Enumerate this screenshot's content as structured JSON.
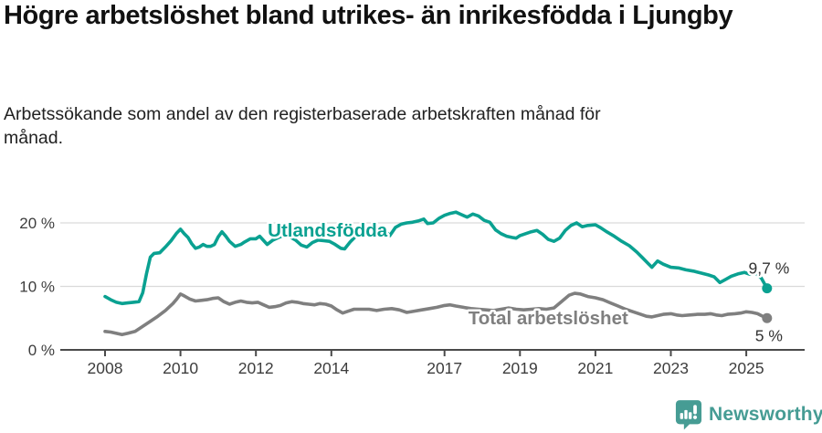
{
  "header": {
    "title": "Högre arbetslöshet bland utrikes- än inrikesfödda i Ljungby",
    "subtitle": "Arbetssökande som andel av den registerbaserade arbetskraften månad för månad."
  },
  "colors": {
    "teal_line": "#0aa191",
    "gray_line": "#7f7f7f",
    "grid": "#d9d9d9",
    "axis": "#4a4a4a",
    "tick_text": "#3d3d3d",
    "end_label_text": "#333333",
    "brand_teal": "#469c94"
  },
  "footer": {
    "brand": "Newsworthy",
    "logo_icon": "newsworthy-speech-bubble-chart-icon"
  },
  "chart_data": {
    "type": "line",
    "title": "Högre arbetslöshet bland utrikes- än inrikesfödda i Ljungby",
    "subtitle": "Arbetssökande som andel av den registerbaserade arbetskraften månad för månad.",
    "xlabel": "",
    "ylabel": "",
    "xlim": [
      2006.8,
      2026.5
    ],
    "ylim": [
      0,
      22.5
    ],
    "grid": "horizontal-only",
    "legend_position": "inline-labels",
    "x_ticks": [
      {
        "v": 2008,
        "label": "2008"
      },
      {
        "v": 2010,
        "label": "2010"
      },
      {
        "v": 2012,
        "label": "2012"
      },
      {
        "v": 2014,
        "label": "2014"
      },
      {
        "v": 2017,
        "label": "2017"
      },
      {
        "v": 2019,
        "label": "2019"
      },
      {
        "v": 2021,
        "label": "2021"
      },
      {
        "v": 2023,
        "label": "2023"
      },
      {
        "v": 2025,
        "label": "2025"
      }
    ],
    "y_ticks": [
      {
        "v": 0,
        "label": "0 %"
      },
      {
        "v": 10,
        "label": "10 %"
      },
      {
        "v": 20,
        "label": "20 %"
      }
    ],
    "series": [
      {
        "name": "Total arbetslöshet",
        "color": "#7f7f7f",
        "end_label": "5 %",
        "end_value": 5.0,
        "label_at": [
          2019.75,
          4.0
        ],
        "end_label_at": [
          2025.6,
          1.4
        ],
        "points": [
          [
            2008.0,
            2.9
          ],
          [
            2008.15,
            2.8
          ],
          [
            2008.3,
            2.6
          ],
          [
            2008.45,
            2.4
          ],
          [
            2008.6,
            2.6
          ],
          [
            2008.8,
            2.9
          ],
          [
            2009.0,
            3.7
          ],
          [
            2009.2,
            4.5
          ],
          [
            2009.4,
            5.3
          ],
          [
            2009.6,
            6.2
          ],
          [
            2009.8,
            7.3
          ],
          [
            2009.9,
            8.0
          ],
          [
            2010.0,
            8.8
          ],
          [
            2010.1,
            8.5
          ],
          [
            2010.25,
            8.0
          ],
          [
            2010.4,
            7.7
          ],
          [
            2010.55,
            7.8
          ],
          [
            2010.7,
            7.9
          ],
          [
            2010.85,
            8.1
          ],
          [
            2011.0,
            8.2
          ],
          [
            2011.15,
            7.6
          ],
          [
            2011.3,
            7.2
          ],
          [
            2011.45,
            7.5
          ],
          [
            2011.6,
            7.7
          ],
          [
            2011.75,
            7.5
          ],
          [
            2011.9,
            7.4
          ],
          [
            2012.05,
            7.5
          ],
          [
            2012.2,
            7.1
          ],
          [
            2012.35,
            6.7
          ],
          [
            2012.5,
            6.8
          ],
          [
            2012.65,
            7.0
          ],
          [
            2012.8,
            7.4
          ],
          [
            2012.95,
            7.6
          ],
          [
            2013.1,
            7.5
          ],
          [
            2013.25,
            7.3
          ],
          [
            2013.4,
            7.2
          ],
          [
            2013.55,
            7.1
          ],
          [
            2013.7,
            7.3
          ],
          [
            2013.85,
            7.2
          ],
          [
            2014.0,
            6.9
          ],
          [
            2014.15,
            6.3
          ],
          [
            2014.3,
            5.8
          ],
          [
            2014.45,
            6.1
          ],
          [
            2014.6,
            6.4
          ],
          [
            2014.8,
            6.4
          ],
          [
            2015.0,
            6.4
          ],
          [
            2015.2,
            6.2
          ],
          [
            2015.4,
            6.4
          ],
          [
            2015.6,
            6.5
          ],
          [
            2015.8,
            6.3
          ],
          [
            2016.0,
            5.9
          ],
          [
            2016.2,
            6.1
          ],
          [
            2016.4,
            6.3
          ],
          [
            2016.6,
            6.5
          ],
          [
            2016.8,
            6.7
          ],
          [
            2017.0,
            7.0
          ],
          [
            2017.15,
            7.1
          ],
          [
            2017.3,
            6.9
          ],
          [
            2017.5,
            6.7
          ],
          [
            2017.7,
            6.5
          ],
          [
            2017.9,
            6.4
          ],
          [
            2018.1,
            6.3
          ],
          [
            2018.3,
            6.2
          ],
          [
            2018.5,
            6.4
          ],
          [
            2018.7,
            6.6
          ],
          [
            2018.9,
            6.4
          ],
          [
            2019.1,
            6.3
          ],
          [
            2019.3,
            6.4
          ],
          [
            2019.5,
            6.5
          ],
          [
            2019.7,
            6.4
          ],
          [
            2019.9,
            6.6
          ],
          [
            2020.1,
            7.6
          ],
          [
            2020.3,
            8.6
          ],
          [
            2020.45,
            8.9
          ],
          [
            2020.6,
            8.8
          ],
          [
            2020.8,
            8.4
          ],
          [
            2021.0,
            8.2
          ],
          [
            2021.2,
            7.9
          ],
          [
            2021.4,
            7.4
          ],
          [
            2021.6,
            6.9
          ],
          [
            2021.8,
            6.4
          ],
          [
            2022.0,
            6.0
          ],
          [
            2022.2,
            5.6
          ],
          [
            2022.35,
            5.3
          ],
          [
            2022.5,
            5.2
          ],
          [
            2022.65,
            5.4
          ],
          [
            2022.8,
            5.6
          ],
          [
            2023.0,
            5.7
          ],
          [
            2023.15,
            5.5
          ],
          [
            2023.3,
            5.4
          ],
          [
            2023.5,
            5.5
          ],
          [
            2023.7,
            5.6
          ],
          [
            2023.9,
            5.6
          ],
          [
            2024.05,
            5.7
          ],
          [
            2024.2,
            5.5
          ],
          [
            2024.35,
            5.4
          ],
          [
            2024.5,
            5.6
          ],
          [
            2024.7,
            5.7
          ],
          [
            2024.85,
            5.8
          ],
          [
            2025.0,
            6.0
          ],
          [
            2025.15,
            5.9
          ],
          [
            2025.3,
            5.7
          ],
          [
            2025.4,
            5.4
          ],
          [
            2025.55,
            5.0
          ]
        ]
      },
      {
        "name": "Utlandsfödda",
        "color": "#0aa191",
        "end_label": "9,7 %",
        "end_value": 9.7,
        "label_at": [
          2013.9,
          17.85
        ],
        "end_label_at": [
          2025.6,
          12.0
        ],
        "points": [
          [
            2008.0,
            8.4
          ],
          [
            2008.15,
            7.9
          ],
          [
            2008.3,
            7.5
          ],
          [
            2008.45,
            7.3
          ],
          [
            2008.6,
            7.4
          ],
          [
            2008.75,
            7.5
          ],
          [
            2008.9,
            7.6
          ],
          [
            2009.0,
            9.0
          ],
          [
            2009.1,
            12.0
          ],
          [
            2009.2,
            14.6
          ],
          [
            2009.3,
            15.2
          ],
          [
            2009.45,
            15.3
          ],
          [
            2009.6,
            16.2
          ],
          [
            2009.75,
            17.2
          ],
          [
            2009.9,
            18.4
          ],
          [
            2010.0,
            19.0
          ],
          [
            2010.1,
            18.3
          ],
          [
            2010.2,
            17.7
          ],
          [
            2010.3,
            16.7
          ],
          [
            2010.4,
            16.0
          ],
          [
            2010.5,
            16.2
          ],
          [
            2010.6,
            16.6
          ],
          [
            2010.7,
            16.3
          ],
          [
            2010.8,
            16.3
          ],
          [
            2010.9,
            16.6
          ],
          [
            2011.0,
            17.8
          ],
          [
            2011.1,
            18.6
          ],
          [
            2011.2,
            17.9
          ],
          [
            2011.3,
            17.1
          ],
          [
            2011.45,
            16.3
          ],
          [
            2011.6,
            16.6
          ],
          [
            2011.7,
            17.0
          ],
          [
            2011.85,
            17.5
          ],
          [
            2012.0,
            17.5
          ],
          [
            2012.1,
            17.9
          ],
          [
            2012.3,
            16.6
          ],
          [
            2012.45,
            17.3
          ],
          [
            2012.6,
            17.7
          ],
          [
            2012.75,
            18.1
          ],
          [
            2012.9,
            17.8
          ],
          [
            2013.05,
            17.3
          ],
          [
            2013.2,
            16.5
          ],
          [
            2013.35,
            16.2
          ],
          [
            2013.5,
            16.9
          ],
          [
            2013.65,
            17.3
          ],
          [
            2013.8,
            17.2
          ],
          [
            2013.95,
            17.1
          ],
          [
            2014.1,
            16.6
          ],
          [
            2014.25,
            16.0
          ],
          [
            2014.35,
            15.9
          ],
          [
            2014.5,
            17.0
          ],
          [
            2014.65,
            17.9
          ],
          [
            2014.8,
            18.2
          ],
          [
            2015.0,
            18.5
          ],
          [
            2015.15,
            18.4
          ],
          [
            2015.3,
            18.5
          ],
          [
            2015.45,
            18.6
          ],
          [
            2015.55,
            18.0
          ],
          [
            2015.7,
            19.3
          ],
          [
            2015.85,
            19.8
          ],
          [
            2016.0,
            20.0
          ],
          [
            2016.15,
            20.1
          ],
          [
            2016.3,
            20.3
          ],
          [
            2016.45,
            20.6
          ],
          [
            2016.55,
            19.9
          ],
          [
            2016.7,
            20.0
          ],
          [
            2016.85,
            20.7
          ],
          [
            2017.0,
            21.2
          ],
          [
            2017.15,
            21.5
          ],
          [
            2017.3,
            21.7
          ],
          [
            2017.45,
            21.3
          ],
          [
            2017.6,
            20.9
          ],
          [
            2017.75,
            21.4
          ],
          [
            2017.9,
            21.1
          ],
          [
            2018.05,
            20.4
          ],
          [
            2018.2,
            20.1
          ],
          [
            2018.35,
            18.9
          ],
          [
            2018.5,
            18.3
          ],
          [
            2018.65,
            17.9
          ],
          [
            2018.8,
            17.7
          ],
          [
            2018.9,
            17.6
          ],
          [
            2019.0,
            18.0
          ],
          [
            2019.15,
            18.3
          ],
          [
            2019.3,
            18.6
          ],
          [
            2019.45,
            18.8
          ],
          [
            2019.6,
            18.2
          ],
          [
            2019.75,
            17.4
          ],
          [
            2019.9,
            17.1
          ],
          [
            2020.05,
            17.6
          ],
          [
            2020.2,
            18.8
          ],
          [
            2020.35,
            19.6
          ],
          [
            2020.5,
            20.0
          ],
          [
            2020.65,
            19.4
          ],
          [
            2020.8,
            19.6
          ],
          [
            2021.0,
            19.7
          ],
          [
            2021.15,
            19.2
          ],
          [
            2021.3,
            18.6
          ],
          [
            2021.5,
            17.9
          ],
          [
            2021.7,
            17.1
          ],
          [
            2021.9,
            16.4
          ],
          [
            2022.1,
            15.4
          ],
          [
            2022.25,
            14.5
          ],
          [
            2022.4,
            13.6
          ],
          [
            2022.5,
            13.0
          ],
          [
            2022.65,
            14.0
          ],
          [
            2022.8,
            13.5
          ],
          [
            2023.0,
            13.0
          ],
          [
            2023.2,
            12.9
          ],
          [
            2023.4,
            12.6
          ],
          [
            2023.6,
            12.4
          ],
          [
            2023.8,
            12.1
          ],
          [
            2024.0,
            11.8
          ],
          [
            2024.15,
            11.5
          ],
          [
            2024.3,
            10.6
          ],
          [
            2024.45,
            11.1
          ],
          [
            2024.6,
            11.6
          ],
          [
            2024.8,
            12.0
          ],
          [
            2024.95,
            12.2
          ],
          [
            2025.1,
            11.9
          ],
          [
            2025.25,
            12.1
          ],
          [
            2025.4,
            11.3
          ],
          [
            2025.55,
            9.7
          ]
        ]
      }
    ]
  }
}
